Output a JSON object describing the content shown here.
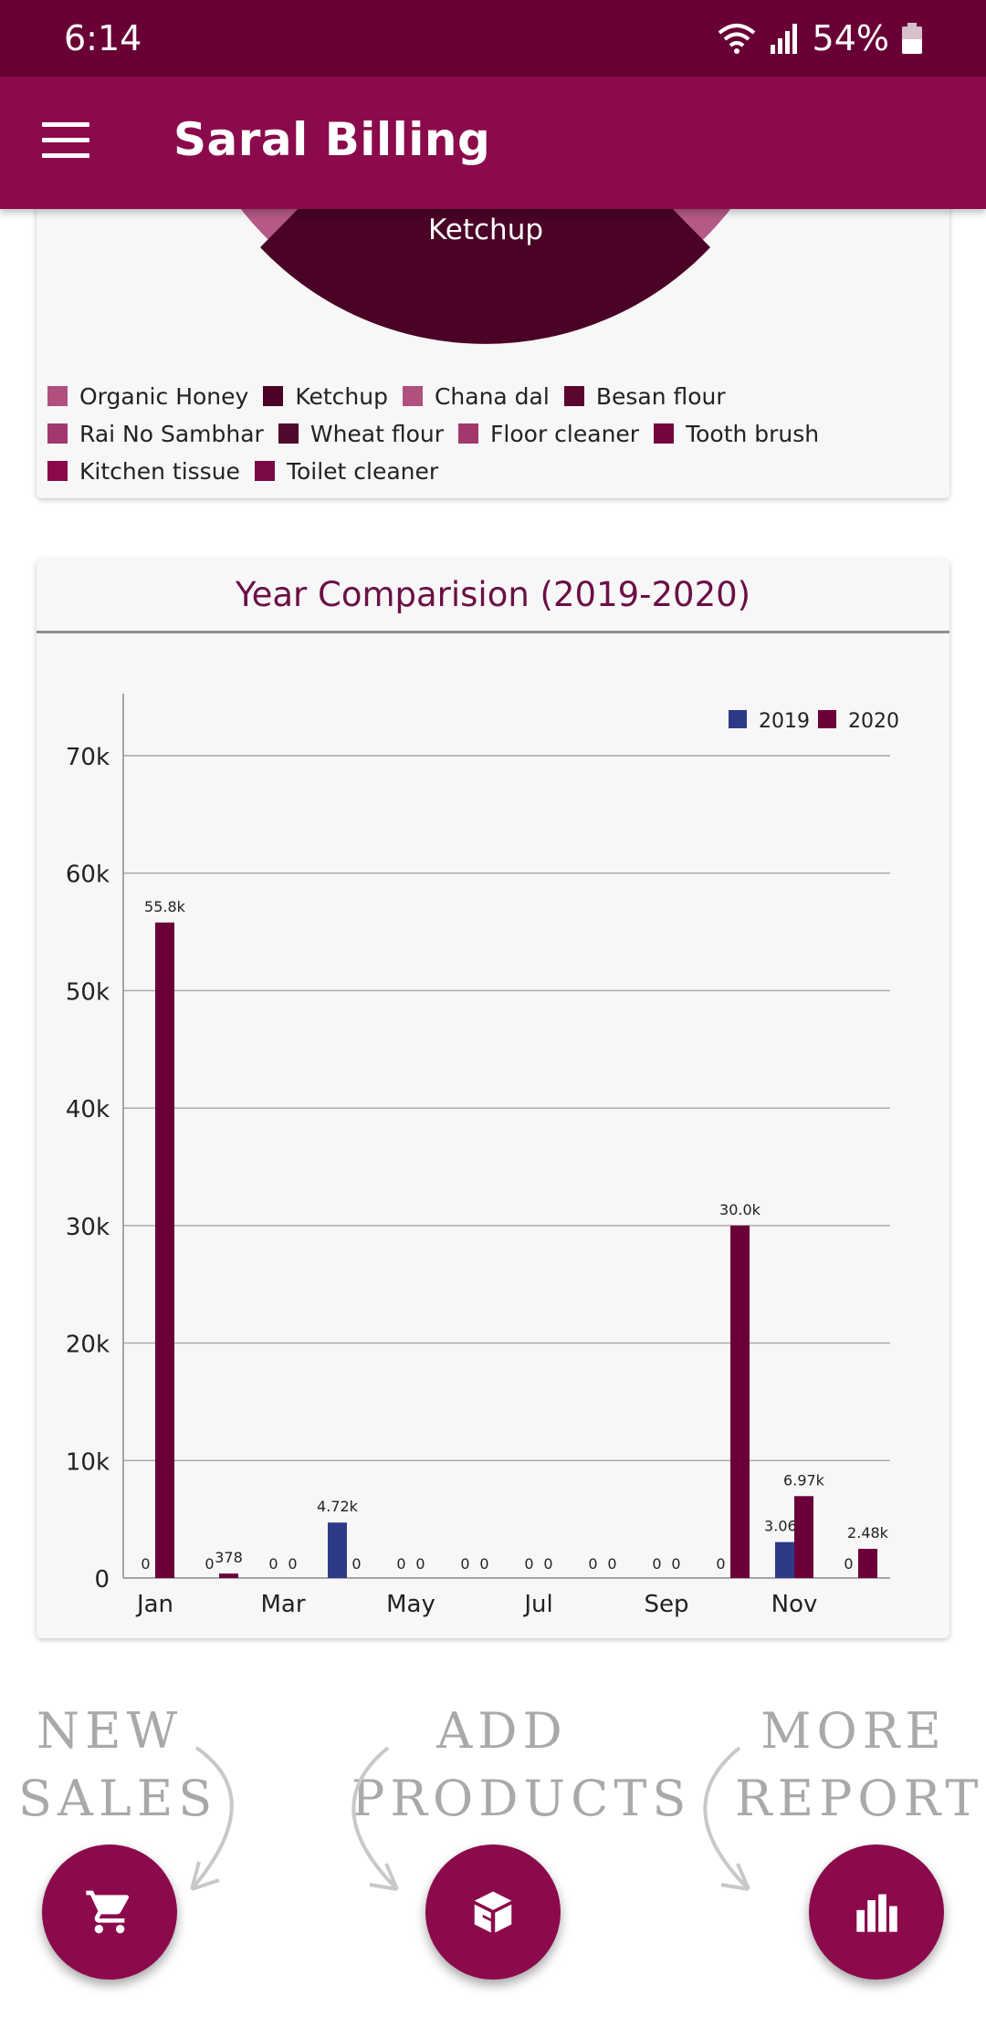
{
  "status_bar": {
    "time": "6:14",
    "battery": "54%"
  },
  "app_bar": {
    "title": "Saral Billing"
  },
  "pie_card": {
    "visible_slice_label": "Ketchup",
    "legend": [
      {
        "label": "Organic Honey",
        "color": "#b0507f"
      },
      {
        "label": "Ketchup",
        "color": "#4a0226"
      },
      {
        "label": "Chana dal",
        "color": "#b0507f"
      },
      {
        "label": "Besan flour",
        "color": "#5a0630"
      },
      {
        "label": "Rai No Sambhar",
        "color": "#a3386e"
      },
      {
        "label": "Wheat flour",
        "color": "#4f0a2d"
      },
      {
        "label": "Floor cleaner",
        "color": "#a3386e"
      },
      {
        "label": "Tooth brush",
        "color": "#74063e"
      },
      {
        "label": "Kitchen tissue",
        "color": "#8b0a4c"
      },
      {
        "label": "Toilet cleaner",
        "color": "#7a0a43"
      }
    ]
  },
  "chart_data": {
    "type": "bar",
    "title": "Year Comparision (2019-2020)",
    "categories": [
      "Jan",
      "Feb",
      "Mar",
      "Apr",
      "May",
      "Jun",
      "Jul",
      "Aug",
      "Sep",
      "Oct",
      "Nov",
      "Dec"
    ],
    "tick_labels": [
      "Jan",
      "Mar",
      "May",
      "Jul",
      "Sep",
      "Nov"
    ],
    "series": [
      {
        "name": "2019",
        "color": "#2e3a87",
        "values": [
          0,
          0,
          0,
          4720,
          0,
          0,
          0,
          0,
          0,
          0,
          3060,
          0
        ],
        "value_labels": [
          "0",
          "0",
          "0",
          "4.72k",
          "0",
          "0",
          "0",
          "0",
          "0",
          "0",
          "3.06k",
          "0"
        ]
      },
      {
        "name": "2020",
        "color": "#6b0038",
        "values": [
          55800,
          378,
          0,
          0,
          0,
          0,
          0,
          0,
          0,
          30000,
          6970,
          2480
        ],
        "value_labels": [
          "55.8k",
          "378",
          "0",
          "0",
          "0",
          "0",
          "0",
          "0",
          "0",
          "30.0k",
          "6.97k",
          "2.48k"
        ]
      }
    ],
    "ylim": [
      0,
      70000
    ],
    "y_ticks": [
      0,
      10000,
      20000,
      30000,
      40000,
      50000,
      60000,
      70000
    ],
    "y_tick_labels": [
      "0",
      "10k",
      "20k",
      "30k",
      "40k",
      "50k",
      "60k",
      "70k"
    ],
    "grid": true,
    "legend_position": "top-right"
  },
  "shortcuts": {
    "new_sales": [
      "NEW",
      "SALES"
    ],
    "add_products": [
      "ADD",
      "PRODUCTS"
    ],
    "more_reports": [
      "MORE",
      "REPORTS"
    ]
  },
  "icons": {
    "menu": "menu-icon",
    "cart": "cart-icon",
    "box": "box-icon",
    "reports": "bar-chart-icon"
  }
}
